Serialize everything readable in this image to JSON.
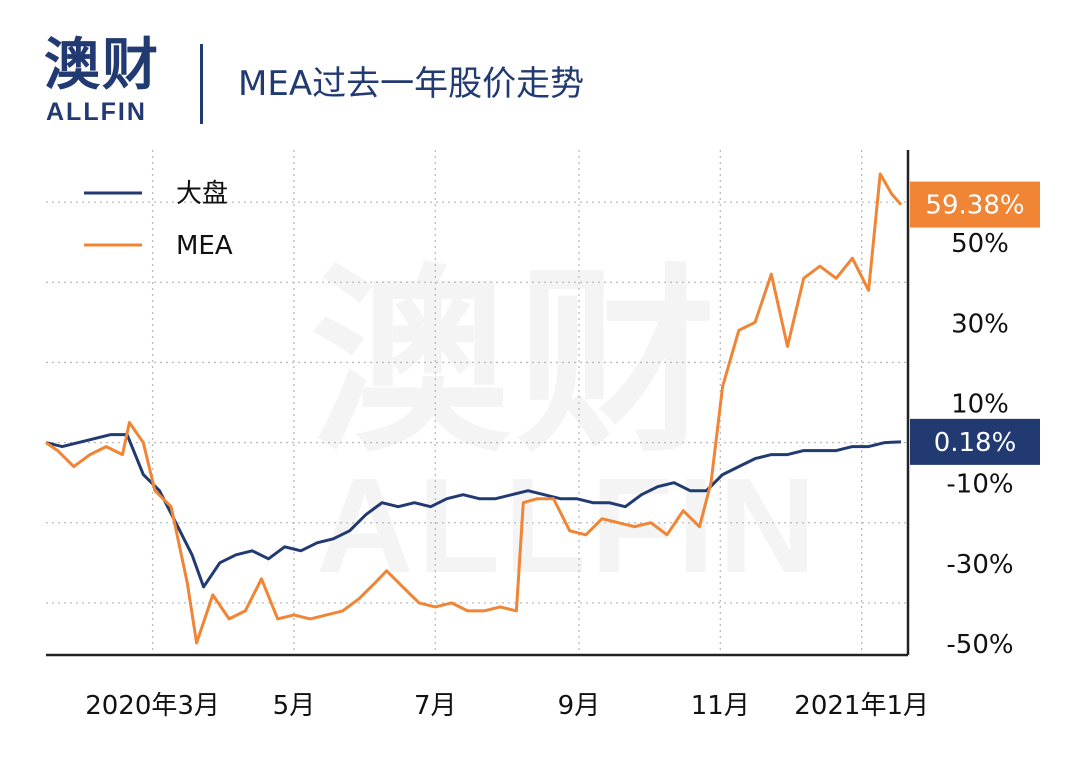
{
  "header": {
    "logo_cn": "澳财",
    "logo_en": "ALLFIN",
    "title": "MEA过去一年股价走势"
  },
  "watermark": {
    "cn": "澳财",
    "en": "ALLFIN"
  },
  "colors": {
    "market": "#213a72",
    "mea": "#ef8535",
    "axis": "#222222",
    "grid": "#bbbbbb"
  },
  "chart_data": {
    "type": "line",
    "title": "MEA过去一年股价走势",
    "xlabel": "",
    "ylabel": "",
    "x_ticks": [
      "2020年3月",
      "5月",
      "7月",
      "9月",
      "11月",
      "2021年1月"
    ],
    "x_tick_dates": [
      "2020-03-01",
      "2020-05-01",
      "2020-07-01",
      "2020-09-01",
      "2020-11-01",
      "2021-01-01"
    ],
    "x_range": [
      "2020-01-15",
      "2021-01-21"
    ],
    "y_ticks": [
      "50%",
      "30%",
      "10%",
      "-10%",
      "-30%",
      "-50%"
    ],
    "y_tick_values": [
      50,
      30,
      10,
      -10,
      -30,
      -50
    ],
    "ylim": [
      -53,
      73
    ],
    "grid": true,
    "legend_position": "top-left",
    "series": [
      {
        "name": "大盘",
        "color": "#213a72",
        "end_label": "0.18%",
        "points": [
          [
            "2020-01-15",
            0
          ],
          [
            "2020-01-22",
            -1
          ],
          [
            "2020-01-29",
            0
          ],
          [
            "2020-02-05",
            1
          ],
          [
            "2020-02-12",
            2
          ],
          [
            "2020-02-19",
            2
          ],
          [
            "2020-02-26",
            -8
          ],
          [
            "2020-03-04",
            -12
          ],
          [
            "2020-03-11",
            -20
          ],
          [
            "2020-03-18",
            -28
          ],
          [
            "2020-03-23",
            -36
          ],
          [
            "2020-03-30",
            -30
          ],
          [
            "2020-04-06",
            -28
          ],
          [
            "2020-04-13",
            -27
          ],
          [
            "2020-04-20",
            -29
          ],
          [
            "2020-04-27",
            -26
          ],
          [
            "2020-05-04",
            -27
          ],
          [
            "2020-05-11",
            -25
          ],
          [
            "2020-05-18",
            -24
          ],
          [
            "2020-05-25",
            -22
          ],
          [
            "2020-06-01",
            -18
          ],
          [
            "2020-06-08",
            -15
          ],
          [
            "2020-06-15",
            -16
          ],
          [
            "2020-06-22",
            -15
          ],
          [
            "2020-06-29",
            -16
          ],
          [
            "2020-07-06",
            -14
          ],
          [
            "2020-07-13",
            -13
          ],
          [
            "2020-07-20",
            -14
          ],
          [
            "2020-07-27",
            -14
          ],
          [
            "2020-08-03",
            -13
          ],
          [
            "2020-08-10",
            -12
          ],
          [
            "2020-08-17",
            -13
          ],
          [
            "2020-08-24",
            -14
          ],
          [
            "2020-08-31",
            -14
          ],
          [
            "2020-09-07",
            -15
          ],
          [
            "2020-09-14",
            -15
          ],
          [
            "2020-09-21",
            -16
          ],
          [
            "2020-09-28",
            -13
          ],
          [
            "2020-10-05",
            -11
          ],
          [
            "2020-10-12",
            -10
          ],
          [
            "2020-10-19",
            -12
          ],
          [
            "2020-10-26",
            -12
          ],
          [
            "2020-11-02",
            -8
          ],
          [
            "2020-11-09",
            -6
          ],
          [
            "2020-11-16",
            -4
          ],
          [
            "2020-11-23",
            -3
          ],
          [
            "2020-11-30",
            -3
          ],
          [
            "2020-12-07",
            -2
          ],
          [
            "2020-12-14",
            -2
          ],
          [
            "2020-12-21",
            -2
          ],
          [
            "2020-12-28",
            -1
          ],
          [
            "2021-01-04",
            -1
          ],
          [
            "2021-01-11",
            0
          ],
          [
            "2021-01-18",
            0.18
          ]
        ]
      },
      {
        "name": "MEA",
        "color": "#ef8535",
        "end_label": "59.38%",
        "points": [
          [
            "2020-01-15",
            0
          ],
          [
            "2020-01-20",
            -2
          ],
          [
            "2020-01-27",
            -6
          ],
          [
            "2020-02-03",
            -3
          ],
          [
            "2020-02-10",
            -1
          ],
          [
            "2020-02-17",
            -3
          ],
          [
            "2020-02-20",
            5
          ],
          [
            "2020-02-26",
            0
          ],
          [
            "2020-03-02",
            -12
          ],
          [
            "2020-03-09",
            -16
          ],
          [
            "2020-03-16",
            -35
          ],
          [
            "2020-03-20",
            -50
          ],
          [
            "2020-03-27",
            -38
          ],
          [
            "2020-04-03",
            -44
          ],
          [
            "2020-04-10",
            -42
          ],
          [
            "2020-04-17",
            -34
          ],
          [
            "2020-04-24",
            -44
          ],
          [
            "2020-05-01",
            -43
          ],
          [
            "2020-05-08",
            -44
          ],
          [
            "2020-05-15",
            -43
          ],
          [
            "2020-05-22",
            -42
          ],
          [
            "2020-05-29",
            -39
          ],
          [
            "2020-06-05",
            -35
          ],
          [
            "2020-06-10",
            -32
          ],
          [
            "2020-06-17",
            -36
          ],
          [
            "2020-06-24",
            -40
          ],
          [
            "2020-07-01",
            -41
          ],
          [
            "2020-07-08",
            -40
          ],
          [
            "2020-07-15",
            -42
          ],
          [
            "2020-07-22",
            -42
          ],
          [
            "2020-07-29",
            -41
          ],
          [
            "2020-08-05",
            -42
          ],
          [
            "2020-08-08",
            -15
          ],
          [
            "2020-08-14",
            -14
          ],
          [
            "2020-08-21",
            -14
          ],
          [
            "2020-08-28",
            -22
          ],
          [
            "2020-09-04",
            -23
          ],
          [
            "2020-09-11",
            -19
          ],
          [
            "2020-09-18",
            -20
          ],
          [
            "2020-09-25",
            -21
          ],
          [
            "2020-10-02",
            -20
          ],
          [
            "2020-10-09",
            -23
          ],
          [
            "2020-10-16",
            -17
          ],
          [
            "2020-10-23",
            -21
          ],
          [
            "2020-10-28",
            -10
          ],
          [
            "2020-11-02",
            14
          ],
          [
            "2020-11-09",
            28
          ],
          [
            "2020-11-16",
            30
          ],
          [
            "2020-11-23",
            42
          ],
          [
            "2020-11-30",
            24
          ],
          [
            "2020-12-07",
            41
          ],
          [
            "2020-12-14",
            44
          ],
          [
            "2020-12-21",
            41
          ],
          [
            "2020-12-28",
            46
          ],
          [
            "2021-01-04",
            38
          ],
          [
            "2021-01-09",
            67
          ],
          [
            "2021-01-14",
            62
          ],
          [
            "2021-01-18",
            59.38
          ]
        ]
      }
    ]
  }
}
